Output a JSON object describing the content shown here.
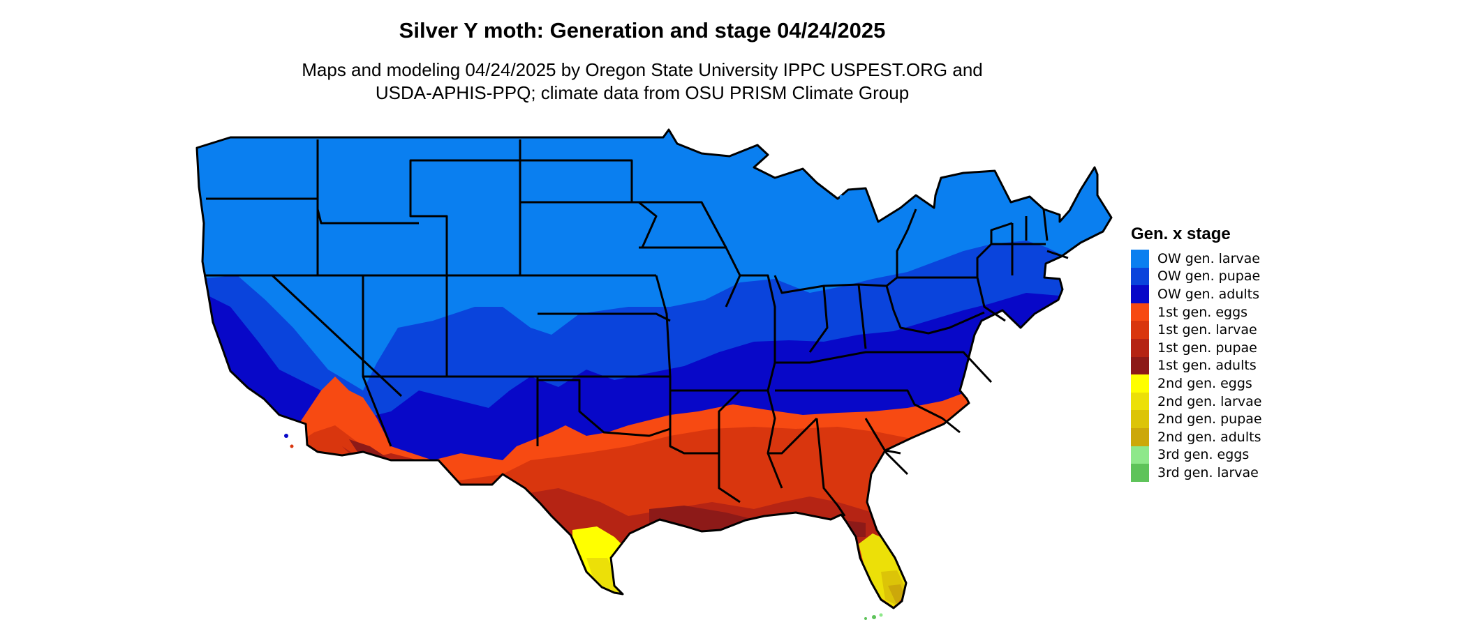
{
  "header": {
    "title": "Silver Y moth: Generation and stage 04/24/2025",
    "subtitle_line1": "Maps and modeling 04/24/2025 by Oregon State University IPPC USPEST.ORG and",
    "subtitle_line2": "USDA-APHIS-PPQ; climate data from OSU PRISM Climate Group"
  },
  "legend": {
    "title": "Gen. x stage",
    "items": [
      {
        "label": "OW gen. larvae",
        "color": "#0a7ff0"
      },
      {
        "label": "OW gen. pupae",
        "color": "#0a44dc"
      },
      {
        "label": "OW gen. adults",
        "color": "#0808c8"
      },
      {
        "label": "1st gen. eggs",
        "color": "#f74a12"
      },
      {
        "label": "1st gen. larvae",
        "color": "#d9360e"
      },
      {
        "label": "1st gen. pupae",
        "color": "#b52414"
      },
      {
        "label": "1st gen. adults",
        "color": "#8d1a18"
      },
      {
        "label": "2nd gen. eggs",
        "color": "#ffff00"
      },
      {
        "label": "2nd gen. larvae",
        "color": "#ece008"
      },
      {
        "label": "2nd gen. pupae",
        "color": "#dcc408"
      },
      {
        "label": "2nd gen. adults",
        "color": "#cca80a"
      },
      {
        "label": "3rd gen. eggs",
        "color": "#8ee88a"
      },
      {
        "label": "3rd gen. larvae",
        "color": "#5ec35a"
      }
    ]
  }
}
